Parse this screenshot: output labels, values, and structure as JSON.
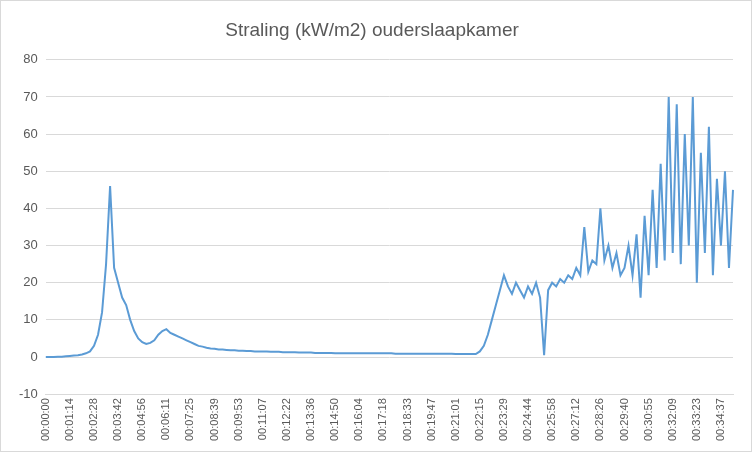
{
  "chart_data": {
    "type": "line",
    "title": "Straling (kW/m2) ouderslaapkamer",
    "categories": [
      "00:00:00",
      null,
      null,
      null,
      null,
      null,
      "00:01:14",
      null,
      null,
      null,
      null,
      null,
      "00:02:28",
      null,
      null,
      null,
      null,
      null,
      "00:03:42",
      null,
      null,
      null,
      null,
      null,
      "00:04:56",
      null,
      null,
      null,
      null,
      null,
      "00:06:11",
      null,
      null,
      null,
      null,
      null,
      "00:07:25",
      null,
      null,
      null,
      null,
      null,
      "00:08:39",
      null,
      null,
      null,
      null,
      null,
      "00:09:53",
      null,
      null,
      null,
      null,
      null,
      "00:11:07",
      null,
      null,
      null,
      null,
      null,
      "00:12:22",
      null,
      null,
      null,
      null,
      null,
      "00:13:36",
      null,
      null,
      null,
      null,
      null,
      "00:14:50",
      null,
      null,
      null,
      null,
      null,
      "00:16:04",
      null,
      null,
      null,
      null,
      null,
      "00:17:18",
      null,
      null,
      null,
      null,
      null,
      "00:18:33",
      null,
      null,
      null,
      null,
      null,
      "00:19:47",
      null,
      null,
      null,
      null,
      null,
      "00:21:01",
      null,
      null,
      null,
      null,
      null,
      "00:22:15",
      null,
      null,
      null,
      null,
      null,
      "00:23:29",
      null,
      null,
      null,
      null,
      null,
      "00:24:44",
      null,
      null,
      null,
      null,
      null,
      "00:25:58",
      null,
      null,
      null,
      null,
      null,
      "00:27:12",
      null,
      null,
      null,
      null,
      null,
      "00:28:26",
      null,
      null,
      null,
      null,
      null,
      "00:29:40",
      null,
      null,
      null,
      null,
      null,
      "00:30:55",
      null,
      null,
      null,
      null,
      null,
      "00:32:09",
      null,
      null,
      null,
      null,
      null,
      "00:33:23",
      null,
      null,
      null,
      null,
      null,
      "00:34:37",
      null,
      null,
      null
    ],
    "values": [
      0,
      0,
      0,
      0.1,
      0.1,
      0.2,
      0.3,
      0.4,
      0.5,
      0.7,
      1,
      1.5,
      3,
      6,
      12,
      25,
      46,
      24,
      20,
      16,
      14,
      10,
      7,
      5,
      4,
      3.5,
      3.8,
      4.5,
      6,
      7,
      7.5,
      6.5,
      6,
      5.5,
      5,
      4.5,
      4,
      3.5,
      3,
      2.8,
      2.5,
      2.3,
      2.2,
      2,
      2,
      1.9,
      1.8,
      1.8,
      1.7,
      1.7,
      1.6,
      1.6,
      1.5,
      1.5,
      1.5,
      1.5,
      1.4,
      1.4,
      1.4,
      1.3,
      1.3,
      1.3,
      1.3,
      1.2,
      1.2,
      1.2,
      1.2,
      1.1,
      1.1,
      1.1,
      1.1,
      1.1,
      1,
      1,
      1,
      1,
      1,
      1,
      1,
      1,
      1,
      1,
      1,
      1,
      1,
      1,
      1,
      0.9,
      0.9,
      0.9,
      0.9,
      0.9,
      0.9,
      0.9,
      0.9,
      0.9,
      0.9,
      0.9,
      0.9,
      0.9,
      0.9,
      0.9,
      0.8,
      0.8,
      0.8,
      0.8,
      0.8,
      0.8,
      1.5,
      3,
      6,
      10,
      14,
      18,
      22,
      19,
      17,
      20,
      18,
      16,
      19,
      17,
      20,
      16,
      0.5,
      18,
      20,
      19,
      21,
      20,
      22,
      21,
      24,
      22,
      35,
      23,
      26,
      25,
      40,
      26,
      30,
      24,
      28,
      22,
      24,
      30,
      22,
      33,
      16,
      38,
      22,
      45,
      24,
      52,
      26,
      70,
      28,
      68,
      25,
      60,
      30,
      70,
      20,
      55,
      28,
      62,
      22,
      48,
      30,
      50,
      24,
      45
    ],
    "color": "#5b9bd5",
    "ylim": [
      -10,
      80
    ],
    "yticks": [
      -10,
      0,
      10,
      20,
      30,
      40,
      50,
      60,
      70,
      80
    ],
    "grid": true
  }
}
